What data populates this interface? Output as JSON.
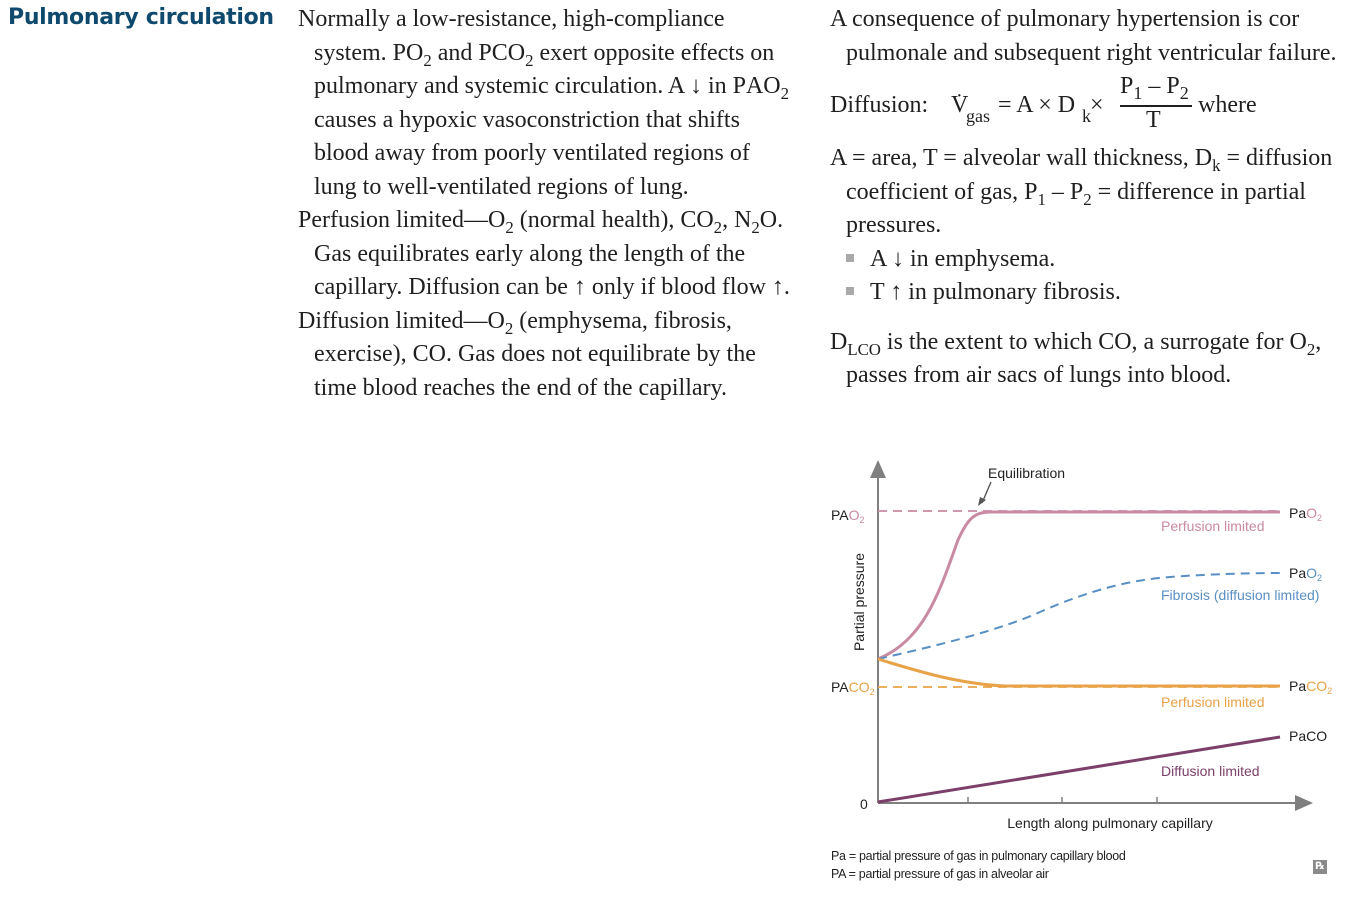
{
  "heading": "Pulmonary circulation",
  "col1": {
    "p1": [
      "Normally a low-resistance, high-compliance system. P",
      "O",
      "2",
      " and P",
      "CO",
      "2",
      " exert opposite effects on pulmonary and systemic circulation. A ",
      "↓",
      " in P",
      "AO",
      "2",
      " causes a hypoxic vasoconstriction that shifts blood away from poorly ventilated regions of lung to well-ventilated regions of lung."
    ],
    "p2": [
      "Perfusion limited—O",
      "2",
      " (normal health), CO",
      "2",
      ", N",
      "2",
      "O. Gas equilibrates early along the length of the capillary. Diffusion can be ",
      "↑",
      " only if blood flow ",
      "↑",
      "."
    ],
    "p3": [
      "Diffusion limited—O",
      "2",
      " (emphysema, fibrosis, exercise), CO. Gas does not equilibrate by the time blood reaches the end of the capillary."
    ]
  },
  "col2": {
    "p1": "A consequence of pulmonary hypertension is cor pulmonale and subsequent right ventricular failure.",
    "eq": {
      "lead": "Diffusion: ",
      "v": "V",
      "vsub": "gas",
      "mid": " = A × D",
      "dsub": "k",
      "times": " ×",
      "num": "P",
      "num_sub1": "1",
      "num_minus": " – P",
      "num_sub2": "2",
      "den": "T",
      "where": "where"
    },
    "p2": [
      "A = area, T = alveolar wall thickness, D",
      "k",
      " = diffusion coefficient of gas, P",
      "1",
      " – P",
      "2",
      " = difference in partial pressures."
    ],
    "bullets": [
      "A ↓ in emphysema.",
      "T ↑ in pulmonary fibrosis."
    ],
    "p3": [
      "D",
      "LCO",
      " is the extent to which CO, a surrogate for O",
      "2",
      ", passes from air sacs of lungs into blood."
    ]
  },
  "chart": {
    "annotation": "Equilibration",
    "y_axis_label": "Partial pressure",
    "x_axis_label": "Length along pulmonary capillary",
    "zero_label": "0",
    "left_labels": [
      {
        "text": "PA",
        "sub": "O",
        "sub2": "2"
      },
      {
        "text": "PA",
        "sub": "CO",
        "sub2": "2"
      }
    ],
    "right_labels": [
      {
        "text": "Pa",
        "sub": "O",
        "sub2": "2"
      },
      {
        "text": "Pa",
        "sub": "O",
        "sub2": "2"
      },
      {
        "text": "Pa",
        "sub": "CO",
        "sub2": "2"
      },
      {
        "text": "PaCO",
        "sub": "",
        "sub2": ""
      }
    ],
    "curve_labels": [
      "Perfusion limited",
      "Fibrosis (diffusion limited)",
      "Perfusion limited",
      "Diffusion limited"
    ],
    "colors": {
      "o2": "#c98aa3",
      "fibrosis": "#5a8fc4",
      "co2": "#e8a248",
      "co": "#7c3f6a",
      "axis": "#7f7f7f"
    }
  },
  "footnotes": [
    "Pa = partial pressure of gas in pulmonary capillary blood",
    "PA = partial pressure of gas in alveolar air"
  ],
  "rx_icon": "rx-icon"
}
